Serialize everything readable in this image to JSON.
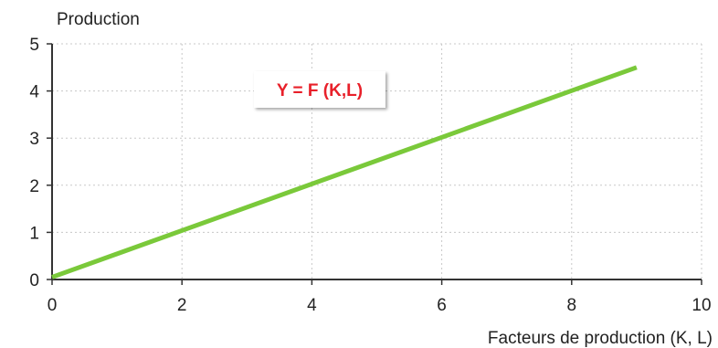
{
  "chart_data": {
    "type": "line",
    "title": "",
    "ylabel": "Production",
    "xlabel": "Facteurs de production (K, L)",
    "xlim": [
      0,
      10
    ],
    "ylim": [
      0,
      5
    ],
    "x_ticks": [
      "0",
      "2",
      "4",
      "6",
      "8",
      "10"
    ],
    "y_ticks": [
      "0",
      "1",
      "2",
      "3",
      "4",
      "5"
    ],
    "grid": true,
    "series": [
      {
        "name": "",
        "color": "#7ac93a",
        "x": [
          0,
          9
        ],
        "y": [
          0.05,
          4.5
        ]
      }
    ],
    "annotations": [
      {
        "text": "Y = F (K,L)",
        "color": "#e8202a"
      }
    ]
  }
}
